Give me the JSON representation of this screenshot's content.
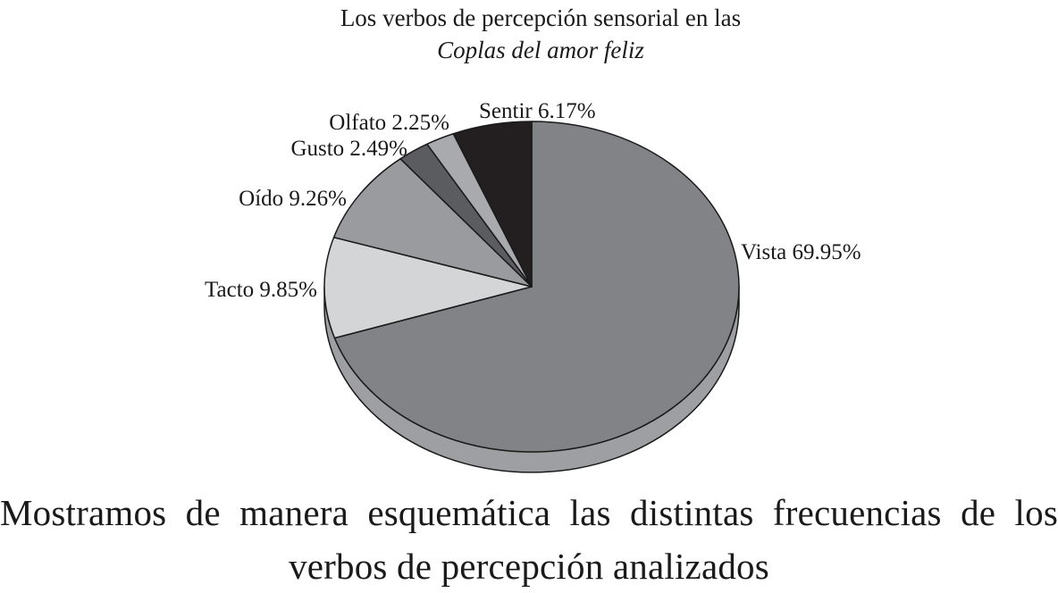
{
  "chart_data": {
    "type": "pie",
    "title_line1": "Los verbos de percepción sensorial en las",
    "title_line2": "Coplas del amor feliz",
    "slices": [
      {
        "label": "Vista",
        "value": 69.95,
        "text": "Vista 69.95%",
        "color": "#828387"
      },
      {
        "label": "Tacto",
        "value": 9.85,
        "text": "Tacto 9.85%",
        "color": "#d4d5d7"
      },
      {
        "label": "Oído",
        "value": 9.26,
        "text": "Oído 9.26%",
        "color": "#9a9b9e"
      },
      {
        "label": "Gusto",
        "value": 2.49,
        "text": "Gusto 2.49%",
        "color": "#5b5c60"
      },
      {
        "label": "Olfato",
        "value": 2.25,
        "text": "Olfato 2.25%",
        "color": "#a9aaad"
      },
      {
        "label": "Sentir",
        "value": 6.17,
        "text": "Sentir 6.17%",
        "color": "#231f20"
      }
    ],
    "side_color": "#9e9fa2",
    "edge_color": "#1a1a1a"
  },
  "caption": "Mostramos de manera esquemática las distintas frecuencias de los verbos de percepción analizados"
}
